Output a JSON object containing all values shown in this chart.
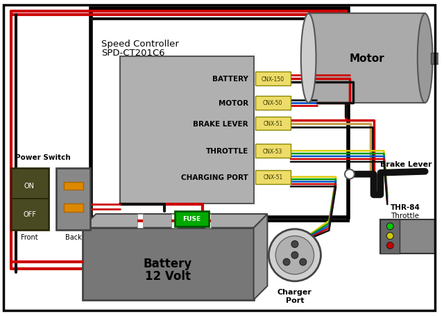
{
  "bg_color": "#ffffff",
  "red": "#cc0000",
  "black": "#111111",
  "dark_gray": "#555555",
  "med_gray": "#888888",
  "light_gray": "#aaaaaa",
  "ctrl_gray": "#b0b0b0",
  "yellow_wire": "#ddcc00",
  "blue_wire": "#0055cc",
  "green_wire": "#009900",
  "tan_wire": "#c8a050",
  "orange_ind": "#dd8800",
  "fuse_green": "#00aa00",
  "ctrl_label1": "Speed Controller",
  "ctrl_label2": "SPD-CT201C6",
  "connectors": [
    {
      "label": "BATTERY",
      "cnx": "CNX-150"
    },
    {
      "label": "MOTOR",
      "cnx": "CNX-50"
    },
    {
      "label": "BRAKE LEVER",
      "cnx": "CNX-51"
    },
    {
      "label": "THROTTLE",
      "cnx": "CNX-53"
    },
    {
      "label": "CHARGING PORT",
      "cnx": "CNX-51"
    }
  ],
  "motor_label": "Motor",
  "battery_label1": "Battery",
  "battery_label2": "12 Volt",
  "power_switch_label": "Power Switch",
  "front_label": "Front",
  "back_label": "Back",
  "brake_label": "Brake Lever",
  "thr_label1": "THR-84",
  "thr_label2": "Throttle",
  "charger_label1": "Charger",
  "charger_label2": "Port",
  "fuse_label": "FUSE"
}
